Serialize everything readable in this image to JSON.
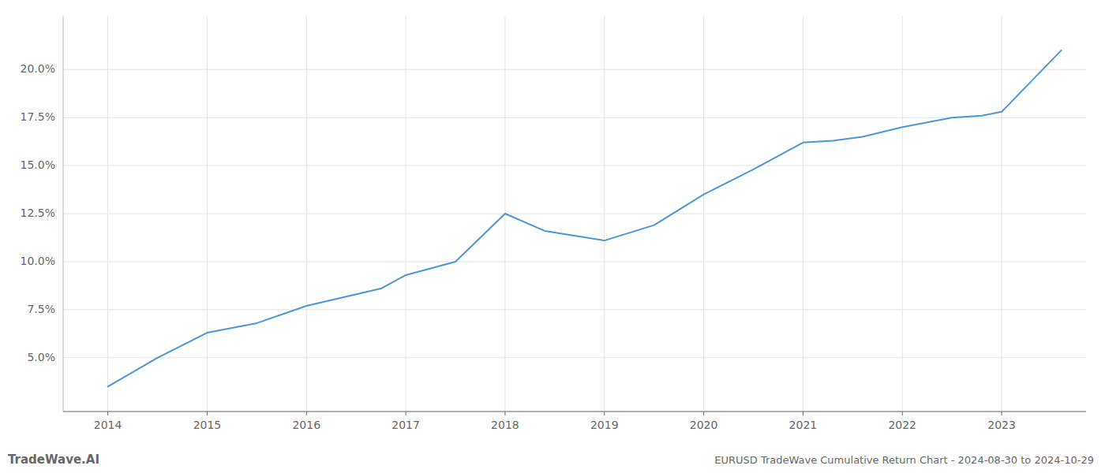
{
  "chart_data": {
    "type": "line",
    "title": "EURUSD TradeWave Cumulative Return Chart - 2024-08-30 to 2024-10-29",
    "annotations": [
      "TradeWave.AI"
    ],
    "x": [
      2014.0,
      2014.5,
      2015.0,
      2015.5,
      2016.0,
      2016.75,
      2017.0,
      2017.5,
      2018.0,
      2018.4,
      2019.0,
      2019.5,
      2020.0,
      2020.5,
      2021.0,
      2021.3,
      2021.6,
      2022.0,
      2022.5,
      2022.8,
      2023.0,
      2023.6
    ],
    "values": [
      0.035,
      0.05,
      0.063,
      0.068,
      0.077,
      0.086,
      0.093,
      0.1,
      0.125,
      0.116,
      0.111,
      0.119,
      0.135,
      0.148,
      0.162,
      0.163,
      0.165,
      0.17,
      0.175,
      0.176,
      0.178,
      0.21
    ],
    "color": "#4c96d7",
    "xlim": [
      2013.55,
      2023.85
    ],
    "ylim": [
      0.022,
      0.228
    ],
    "xticks": [
      2014,
      2015,
      2016,
      2017,
      2018,
      2019,
      2020,
      2021,
      2022,
      2023
    ],
    "yticks": [
      {
        "value": 0.05,
        "label": "5.0%"
      },
      {
        "value": 0.075,
        "label": "7.5%"
      },
      {
        "value": 0.1,
        "label": "10.0%"
      },
      {
        "value": 0.125,
        "label": "12.5%"
      },
      {
        "value": 0.15,
        "label": "15.0%"
      },
      {
        "value": 0.175,
        "label": "17.5%"
      },
      {
        "value": 0.2,
        "label": "20.0%"
      }
    ],
    "grid": true
  }
}
